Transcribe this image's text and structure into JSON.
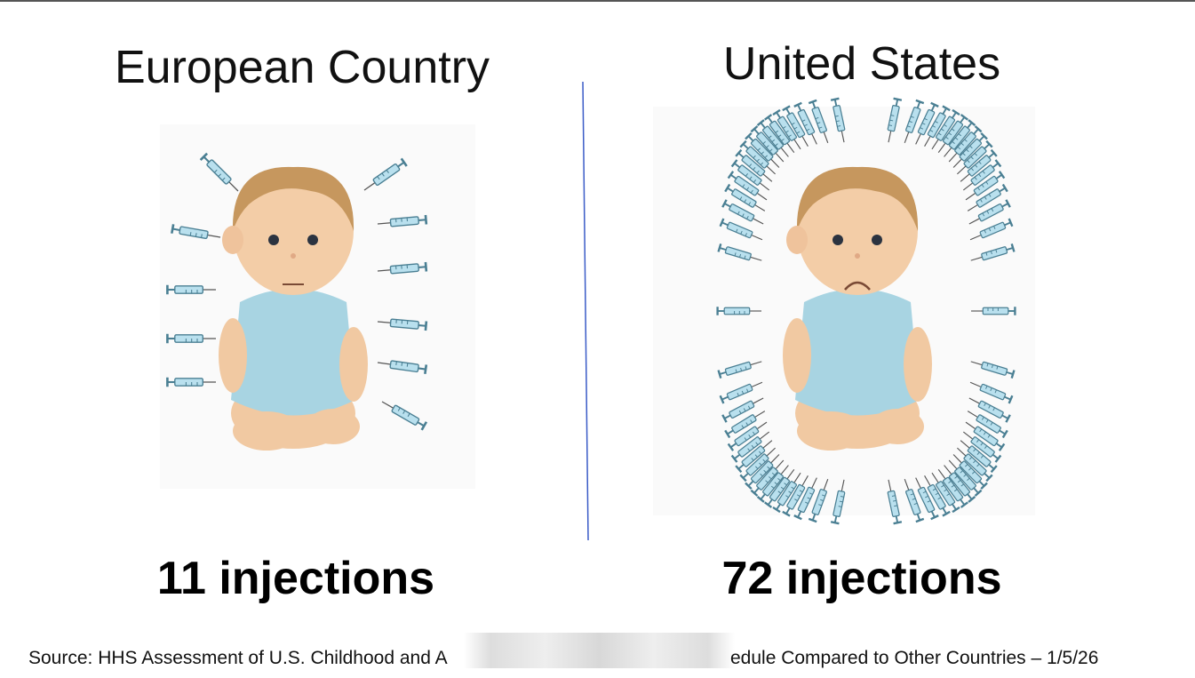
{
  "left": {
    "title": "European Country",
    "caption": "11 injections"
  },
  "right": {
    "title": "United States",
    "caption": "72 injections"
  },
  "source": {
    "text_start": "Source: HHS Assessment of U.S. Childhood and A",
    "text_end": "edule Compared to Other Countries – 1/5/26"
  }
}
